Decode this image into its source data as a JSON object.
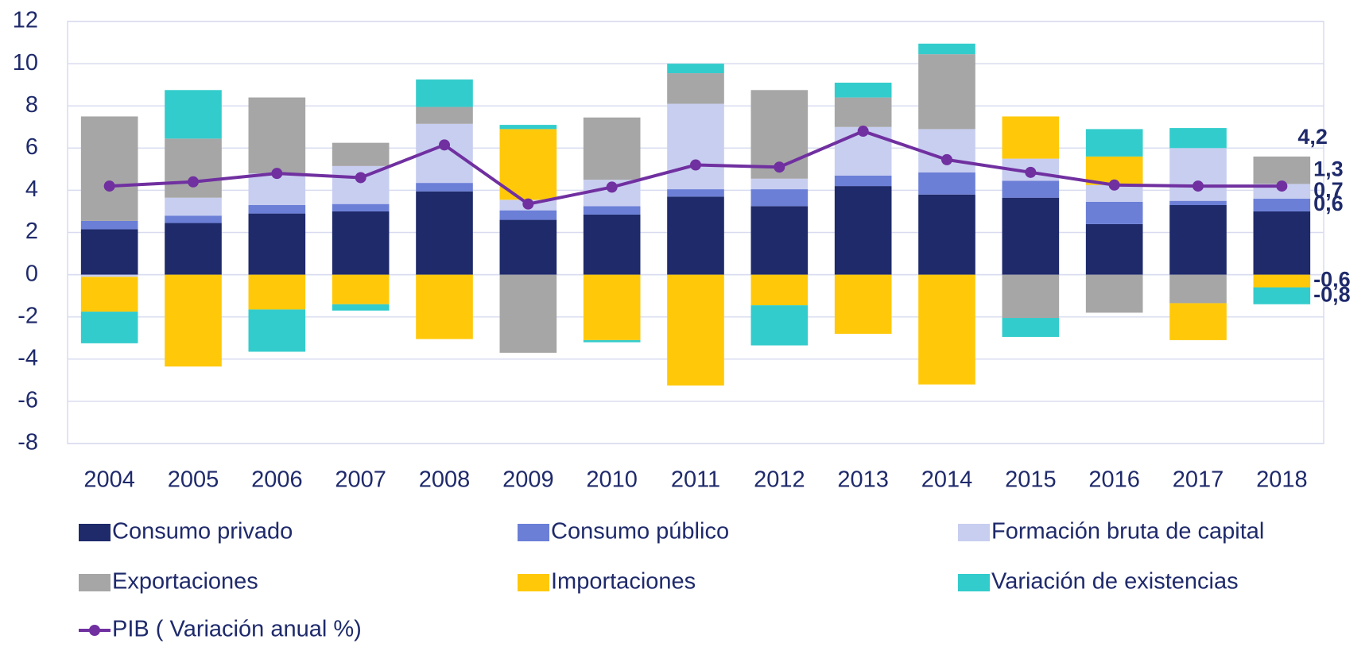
{
  "chart_data": {
    "type": "bar",
    "stacked": true,
    "categories": [
      "2004",
      "2005",
      "2006",
      "2007",
      "2008",
      "2009",
      "2010",
      "2011",
      "2012",
      "2013",
      "2014",
      "2015",
      "2016",
      "2017",
      "2018"
    ],
    "ylim": [
      -8,
      12
    ],
    "yticks": [
      -8,
      -6,
      -4,
      -2,
      0,
      2,
      4,
      6,
      8,
      10,
      12
    ],
    "grid": true,
    "series": [
      {
        "name": "Consumo privado",
        "color": "#1f2a6b",
        "values": [
          2.15,
          2.45,
          2.9,
          3.0,
          3.95,
          2.6,
          2.85,
          3.7,
          3.25,
          4.2,
          3.8,
          3.65,
          2.4,
          3.3,
          3.0
        ]
      },
      {
        "name": "Consumo público",
        "color": "#6b7fd7",
        "values": [
          0.4,
          0.35,
          0.4,
          0.35,
          0.4,
          0.45,
          0.4,
          0.35,
          0.8,
          0.5,
          1.05,
          0.8,
          1.05,
          0.2,
          0.6
        ],
        "value_labels": [
          null,
          null,
          null,
          null,
          null,
          null,
          null,
          null,
          null,
          null,
          null,
          null,
          null,
          null,
          "0,6"
        ]
      },
      {
        "name": "Formación bruta de capital",
        "color": "#c8cef0",
        "values": [
          -0.1,
          0.85,
          1.5,
          1.8,
          2.8,
          0.5,
          1.25,
          4.05,
          0.5,
          2.3,
          2.05,
          1.05,
          0.8,
          2.5,
          0.7
        ],
        "value_labels": [
          null,
          null,
          null,
          null,
          null,
          null,
          null,
          null,
          null,
          null,
          null,
          null,
          null,
          null,
          "0,7"
        ]
      },
      {
        "name": "Exportaciones",
        "color": "#a6a6a6",
        "values": [
          4.95,
          2.8,
          3.6,
          1.1,
          0.8,
          -3.7,
          2.95,
          1.45,
          4.2,
          1.4,
          3.55,
          -2.05,
          -1.8,
          -1.35,
          1.3
        ],
        "value_labels": [
          null,
          null,
          null,
          null,
          null,
          null,
          null,
          null,
          null,
          null,
          null,
          null,
          null,
          null,
          "1,3"
        ]
      },
      {
        "name": "Importaciones",
        "color": "#ffc90a",
        "values": [
          -1.65,
          -4.35,
          -1.65,
          -1.4,
          -3.05,
          3.35,
          -3.1,
          -5.25,
          -1.45,
          -2.8,
          -5.2,
          2.0,
          1.35,
          -1.75,
          -0.6
        ],
        "value_labels": [
          null,
          null,
          null,
          null,
          null,
          null,
          null,
          null,
          null,
          null,
          null,
          null,
          null,
          null,
          "-0,6"
        ]
      },
      {
        "name": "Variación de existencias",
        "color": "#33cccc",
        "values": [
          -1.5,
          2.3,
          -2.0,
          -0.3,
          1.3,
          0.2,
          -0.1,
          0.45,
          -1.9,
          0.7,
          0.5,
          -0.9,
          1.3,
          0.95,
          -0.8
        ],
        "value_labels": [
          null,
          null,
          null,
          null,
          null,
          null,
          null,
          null,
          null,
          null,
          null,
          null,
          null,
          null,
          "-0,8"
        ]
      },
      {
        "name": "PIB ( Variación anual %)",
        "type": "line",
        "color": "#7030a0",
        "values": [
          4.2,
          4.4,
          4.8,
          4.6,
          6.15,
          3.35,
          4.15,
          5.2,
          5.1,
          6.8,
          5.45,
          4.85,
          4.25,
          4.2,
          4.2
        ],
        "value_labels": [
          null,
          null,
          null,
          null,
          null,
          null,
          null,
          null,
          null,
          null,
          null,
          null,
          null,
          null,
          "4,2"
        ]
      }
    ]
  }
}
